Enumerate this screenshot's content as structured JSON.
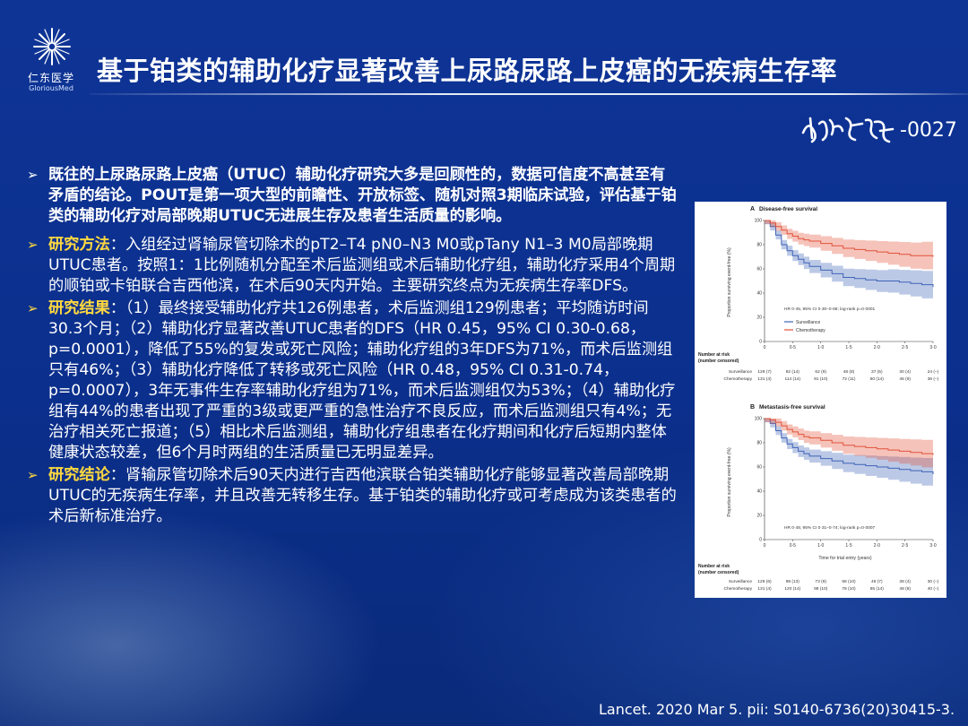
{
  "brand": {
    "name_cn": "仁东医学",
    "name_en": "GloriousMed"
  },
  "title": "基于铂类的辅助化疗显著改善上尿路尿路上皮癌的无疾病生存率",
  "code": "-0027",
  "paragraphs": {
    "p1": "既往的上尿路尿路上皮癌（UTUC）辅助化疗研究大多是回顾性的，数据可信度不高甚至有矛盾的结论。POUT是第一项大型的前瞻性、开放标签、随机对照3期临床试验，评估基于铂类的辅助化疗对局部晚期UTUC无进展生存及患者生活质量的影响。",
    "p2_label": "研究方法",
    "p2_text": "：入组经过肾输尿管切除术的pT2–T4 pN0–N3 M0或pTany N1–3 M0局部晚期UTUC患者。按照1：1比例随机分配至术后监测组或术后辅助化疗组，辅助化疗采用4个周期的顺铂或卡铂联合吉西他滨，在术后90天内开始。主要研究终点为无疾病生存率DFS。",
    "p3_label": "研究结果",
    "p3_text": "：（1）最终接受辅助化疗共126例患者，术后监测组129例患者；平均随访时间30.3个月；（2）辅助化疗显著改善UTUC患者的DFS（HR 0.45，95% CI 0.30-0.68，p=0.0001），降低了55%的复发或死亡风险；辅助化疗组的3年DFS为71%，而术后监测组只有46%；（3）辅助化疗降低了转移或死亡风险（HR 0.48，95% CI 0.31-0.74，p=0.0007），3年无事件生存率辅助化疗组为71%，而术后监测组仅为53%；（4）辅助化疗组有44%的患者出现了严重的3级或更严重的急性治疗不良反应，而术后监测组只有4%；无治疗相关死亡报道；（5）相比术后监测组，辅助化疗组患者在化疗期间和化疗后短期内整体健康状态较差，但6个月时两组的生活质量已无明显差异。",
    "p4_label": "研究结论",
    "p4_text": "：肾输尿管切除术后90天内进行吉西他滨联合铂类辅助化疗能够显著改善局部晚期UTUC的无疾病生存率，并且改善无转移生存。基于铂类的辅助化疗或可考虑成为该类患者的术后新标准治疗。"
  },
  "figure": {
    "panel_a": {
      "letter": "A",
      "title": "Disease-free survival",
      "hr_text": "HR 0·45, 95% CI 0·30–0·68; log-rank p=0·0001"
    },
    "panel_b": {
      "letter": "B",
      "title": "Metastasis-free survival",
      "hr_text": "HR 0·48, 95% CI 0·31–0·74; log-rank p=0·0007"
    },
    "ylabel": "Proportion surviving event-free (%)",
    "xlabel": "Time for trial entry (years)",
    "legend": [
      "Surveillance",
      "Chemotherapy"
    ],
    "risk_title_1": "Number at risk",
    "risk_title_2": "(number censored)",
    "risk_a": {
      "surveillance": [
        "129 (7)",
        "92 (14)",
        "62 (9)",
        "48 (8)",
        "37 (5)",
        "30 (4)",
        "24 (–)"
      ],
      "chemotherapy": [
        "131 (4)",
        "114 (14)",
        "91 (10)",
        "72 (11)",
        "60 (14)",
        "45 (9)",
        "36 (–)"
      ]
    },
    "risk_b": {
      "surveillance": [
        "129 (6)",
        "98 (13)",
        "73 (9)",
        "58 (10)",
        "46 (7)",
        "38 (4)",
        "30 (–)"
      ],
      "chemotherapy": [
        "131 (4)",
        "120 (14)",
        "98 (10)",
        "78 (10)",
        "65 (14)",
        "48 (8)",
        "40 (–)"
      ]
    },
    "colors": {
      "surveillance": "#3f63b8",
      "chemotherapy": "#e2533a"
    }
  },
  "chart_data": [
    {
      "type": "line",
      "title": "Disease-free survival",
      "xlabel": "",
      "ylabel": "Proportion surviving event-free (%)",
      "xlim": [
        0,
        3
      ],
      "ylim": [
        0,
        100
      ],
      "xticks": [
        "0",
        "0·5",
        "1·0",
        "1·5",
        "2·0",
        "2·5",
        "3·0"
      ],
      "yticks": [
        "0",
        "20",
        "40",
        "60",
        "80",
        "100"
      ],
      "series": [
        {
          "name": "Surveillance",
          "x": [
            0,
            0.1,
            0.2,
            0.3,
            0.4,
            0.5,
            0.6,
            0.7,
            0.8,
            1.0,
            1.2,
            1.4,
            1.6,
            1.8,
            2.0,
            2.2,
            2.4,
            2.6,
            2.8,
            3.0
          ],
          "y": [
            100,
            95,
            88,
            80,
            75,
            71,
            68,
            65,
            62,
            59,
            56,
            53,
            52,
            51,
            50,
            50,
            49,
            48,
            47,
            45
          ]
        },
        {
          "name": "Chemotherapy",
          "x": [
            0,
            0.1,
            0.2,
            0.3,
            0.4,
            0.5,
            0.6,
            0.7,
            0.8,
            1.0,
            1.2,
            1.4,
            1.6,
            1.8,
            2.0,
            2.2,
            2.4,
            2.6,
            2.8,
            3.0
          ],
          "y": [
            100,
            98,
            95,
            92,
            89,
            87,
            85,
            84,
            83,
            81,
            79,
            77,
            76,
            75,
            74,
            73,
            72,
            71,
            71,
            70
          ]
        }
      ],
      "legend": "bottom-left"
    },
    {
      "type": "line",
      "title": "Metastasis-free survival",
      "xlabel": "Time for trial entry (years)",
      "ylabel": "Proportion surviving event-free (%)",
      "xlim": [
        0,
        3
      ],
      "ylim": [
        0,
        100
      ],
      "xticks": [
        "0",
        "0·5",
        "1·0",
        "1·5",
        "2·0",
        "2·5",
        "3·0"
      ],
      "yticks": [
        "0",
        "20",
        "40",
        "60",
        "80",
        "100"
      ],
      "series": [
        {
          "name": "Surveillance",
          "x": [
            0,
            0.1,
            0.2,
            0.3,
            0.4,
            0.5,
            0.6,
            0.7,
            0.8,
            1.0,
            1.2,
            1.4,
            1.6,
            1.8,
            2.0,
            2.2,
            2.4,
            2.6,
            2.8,
            3.0
          ],
          "y": [
            100,
            96,
            90,
            84,
            79,
            76,
            73,
            71,
            69,
            67,
            65,
            63,
            62,
            61,
            60,
            59,
            58,
            57,
            56,
            54
          ]
        },
        {
          "name": "Chemotherapy",
          "x": [
            0,
            0.1,
            0.2,
            0.3,
            0.4,
            0.5,
            0.6,
            0.7,
            0.8,
            1.0,
            1.2,
            1.4,
            1.6,
            1.8,
            2.0,
            2.2,
            2.4,
            2.6,
            2.8,
            3.0
          ],
          "y": [
            100,
            99,
            97,
            94,
            91,
            89,
            87,
            85,
            84,
            82,
            80,
            78,
            77,
            76,
            75,
            74,
            73,
            72,
            71,
            70
          ]
        }
      ]
    }
  ],
  "reference": "Lancet. 2020 Mar 5. pii: S0140-6736(20)30415-3."
}
